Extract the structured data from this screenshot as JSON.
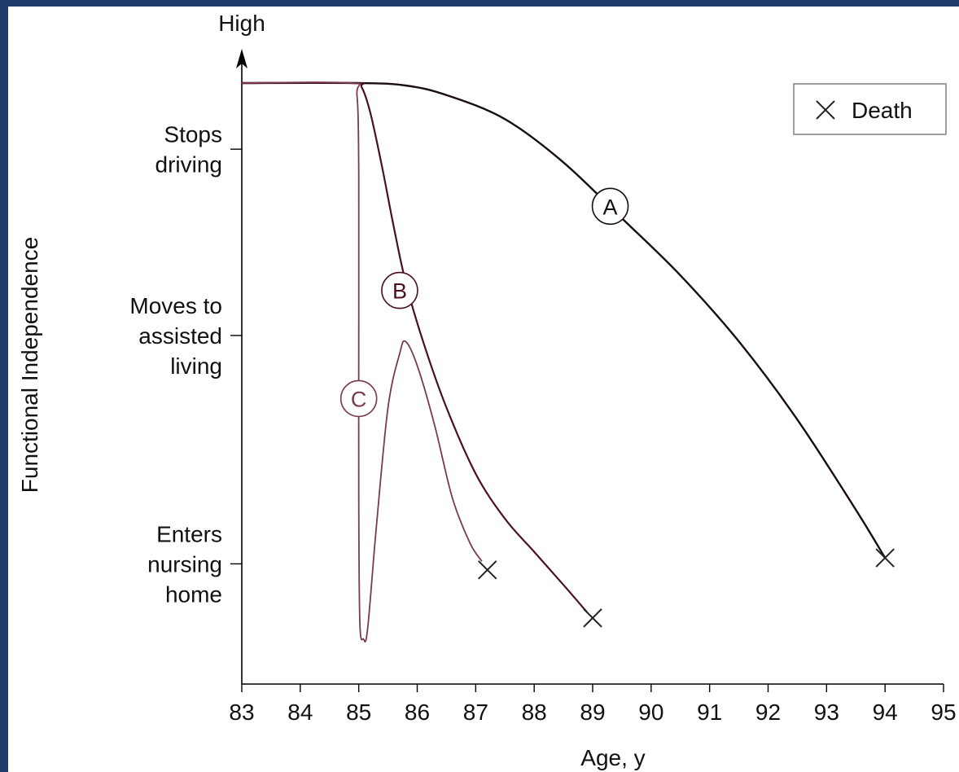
{
  "chart_data": {
    "type": "line",
    "xlabel": "Age, y",
    "ylabel": "Functional Independence",
    "y_top_label": "High",
    "x_ticks": [
      83,
      84,
      85,
      86,
      87,
      88,
      89,
      90,
      91,
      92,
      93,
      94,
      95
    ],
    "xlim": [
      83,
      95
    ],
    "ylim": [
      0,
      100
    ],
    "y_ticks": [
      {
        "value": 89,
        "lines": [
          "Stops",
          "driving"
        ]
      },
      {
        "value": 58,
        "lines": [
          "Moves to",
          "assisted",
          "living"
        ]
      },
      {
        "value": 20,
        "lines": [
          "Enters",
          "nursing",
          "home"
        ]
      }
    ],
    "legend": {
      "symbol": "×",
      "label": "Death",
      "position": "top-right"
    },
    "series": [
      {
        "name": "A",
        "color": "#1a0d12",
        "points": [
          [
            83,
            100
          ],
          [
            85,
            100
          ],
          [
            85.8,
            99.6
          ],
          [
            86.5,
            98
          ],
          [
            87.5,
            94
          ],
          [
            88.5,
            86.8
          ],
          [
            89.5,
            77.5
          ],
          [
            90.5,
            68
          ],
          [
            91.5,
            57
          ],
          [
            92.5,
            44
          ],
          [
            93.5,
            29
          ],
          [
            94,
            21
          ]
        ],
        "label_at": [
          89.3,
          79.5
        ],
        "death": [
          94,
          21
        ]
      },
      {
        "name": "B",
        "color": "#4a1023",
        "points": [
          [
            83,
            100
          ],
          [
            84.9,
            100
          ],
          [
            85.05,
            99.3
          ],
          [
            85.2,
            95
          ],
          [
            85.4,
            86
          ],
          [
            85.6,
            76
          ],
          [
            85.8,
            67
          ],
          [
            86.1,
            57
          ],
          [
            86.5,
            46
          ],
          [
            87,
            35
          ],
          [
            87.5,
            27.5
          ],
          [
            88,
            22
          ],
          [
            88.5,
            16.5
          ],
          [
            88.9,
            12
          ]
        ],
        "label_at": [
          85.7,
          65.5
        ],
        "death": [
          89,
          11
        ]
      },
      {
        "name": "C",
        "color": "#7a3a4f",
        "points": [
          [
            83,
            100
          ],
          [
            84.85,
            100
          ],
          [
            84.97,
            98
          ],
          [
            85,
            85
          ],
          [
            85,
            60
          ],
          [
            85,
            30
          ],
          [
            85.02,
            10
          ],
          [
            85.08,
            7.5
          ],
          [
            85.15,
            9
          ],
          [
            85.3,
            26
          ],
          [
            85.5,
            46
          ],
          [
            85.7,
            55
          ],
          [
            85.8,
            57
          ],
          [
            86.0,
            53
          ],
          [
            86.3,
            43
          ],
          [
            86.6,
            31
          ],
          [
            86.9,
            23.5
          ],
          [
            87.1,
            20.5
          ]
        ],
        "label_at": [
          85,
          47.5
        ],
        "death": [
          87.2,
          19
        ]
      }
    ]
  }
}
